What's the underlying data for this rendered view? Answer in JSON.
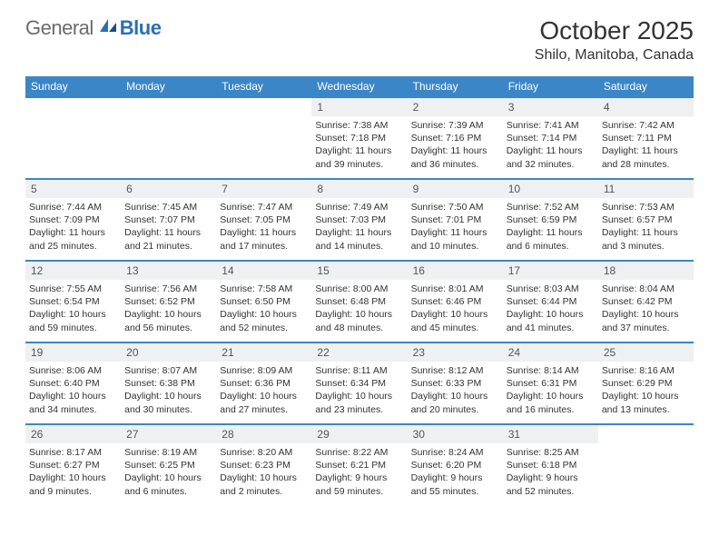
{
  "logo": {
    "general": "General",
    "blue": "Blue"
  },
  "title": "October 2025",
  "subtitle": "Shilo, Manitoba, Canada",
  "colors": {
    "header_bg": "#3b86c7",
    "header_text": "#ffffff",
    "week_border": "#3b86c7",
    "daynum_bg": "#eef0f2",
    "daynum_text": "#555555",
    "body_text": "#333333",
    "logo_general": "#6b6b6b",
    "logo_blue": "#2a6fb5",
    "page_bg": "#ffffff"
  },
  "typography": {
    "title_fontsize": 28,
    "subtitle_fontsize": 16,
    "dow_fontsize": 12,
    "daynum_fontsize": 12,
    "body_fontsize": 10.5,
    "logo_fontsize": 22
  },
  "layout": {
    "columns": 7,
    "rows": 5,
    "cell_min_height": 88
  },
  "days_of_week": [
    "Sunday",
    "Monday",
    "Tuesday",
    "Wednesday",
    "Thursday",
    "Friday",
    "Saturday"
  ],
  "weeks": [
    [
      {
        "day": "",
        "sunrise": "",
        "sunset": "",
        "daylight": ""
      },
      {
        "day": "",
        "sunrise": "",
        "sunset": "",
        "daylight": ""
      },
      {
        "day": "",
        "sunrise": "",
        "sunset": "",
        "daylight": ""
      },
      {
        "day": "1",
        "sunrise": "Sunrise: 7:38 AM",
        "sunset": "Sunset: 7:18 PM",
        "daylight": "Daylight: 11 hours and 39 minutes."
      },
      {
        "day": "2",
        "sunrise": "Sunrise: 7:39 AM",
        "sunset": "Sunset: 7:16 PM",
        "daylight": "Daylight: 11 hours and 36 minutes."
      },
      {
        "day": "3",
        "sunrise": "Sunrise: 7:41 AM",
        "sunset": "Sunset: 7:14 PM",
        "daylight": "Daylight: 11 hours and 32 minutes."
      },
      {
        "day": "4",
        "sunrise": "Sunrise: 7:42 AM",
        "sunset": "Sunset: 7:11 PM",
        "daylight": "Daylight: 11 hours and 28 minutes."
      }
    ],
    [
      {
        "day": "5",
        "sunrise": "Sunrise: 7:44 AM",
        "sunset": "Sunset: 7:09 PM",
        "daylight": "Daylight: 11 hours and 25 minutes."
      },
      {
        "day": "6",
        "sunrise": "Sunrise: 7:45 AM",
        "sunset": "Sunset: 7:07 PM",
        "daylight": "Daylight: 11 hours and 21 minutes."
      },
      {
        "day": "7",
        "sunrise": "Sunrise: 7:47 AM",
        "sunset": "Sunset: 7:05 PM",
        "daylight": "Daylight: 11 hours and 17 minutes."
      },
      {
        "day": "8",
        "sunrise": "Sunrise: 7:49 AM",
        "sunset": "Sunset: 7:03 PM",
        "daylight": "Daylight: 11 hours and 14 minutes."
      },
      {
        "day": "9",
        "sunrise": "Sunrise: 7:50 AM",
        "sunset": "Sunset: 7:01 PM",
        "daylight": "Daylight: 11 hours and 10 minutes."
      },
      {
        "day": "10",
        "sunrise": "Sunrise: 7:52 AM",
        "sunset": "Sunset: 6:59 PM",
        "daylight": "Daylight: 11 hours and 6 minutes."
      },
      {
        "day": "11",
        "sunrise": "Sunrise: 7:53 AM",
        "sunset": "Sunset: 6:57 PM",
        "daylight": "Daylight: 11 hours and 3 minutes."
      }
    ],
    [
      {
        "day": "12",
        "sunrise": "Sunrise: 7:55 AM",
        "sunset": "Sunset: 6:54 PM",
        "daylight": "Daylight: 10 hours and 59 minutes."
      },
      {
        "day": "13",
        "sunrise": "Sunrise: 7:56 AM",
        "sunset": "Sunset: 6:52 PM",
        "daylight": "Daylight: 10 hours and 56 minutes."
      },
      {
        "day": "14",
        "sunrise": "Sunrise: 7:58 AM",
        "sunset": "Sunset: 6:50 PM",
        "daylight": "Daylight: 10 hours and 52 minutes."
      },
      {
        "day": "15",
        "sunrise": "Sunrise: 8:00 AM",
        "sunset": "Sunset: 6:48 PM",
        "daylight": "Daylight: 10 hours and 48 minutes."
      },
      {
        "day": "16",
        "sunrise": "Sunrise: 8:01 AM",
        "sunset": "Sunset: 6:46 PM",
        "daylight": "Daylight: 10 hours and 45 minutes."
      },
      {
        "day": "17",
        "sunrise": "Sunrise: 8:03 AM",
        "sunset": "Sunset: 6:44 PM",
        "daylight": "Daylight: 10 hours and 41 minutes."
      },
      {
        "day": "18",
        "sunrise": "Sunrise: 8:04 AM",
        "sunset": "Sunset: 6:42 PM",
        "daylight": "Daylight: 10 hours and 37 minutes."
      }
    ],
    [
      {
        "day": "19",
        "sunrise": "Sunrise: 8:06 AM",
        "sunset": "Sunset: 6:40 PM",
        "daylight": "Daylight: 10 hours and 34 minutes."
      },
      {
        "day": "20",
        "sunrise": "Sunrise: 8:07 AM",
        "sunset": "Sunset: 6:38 PM",
        "daylight": "Daylight: 10 hours and 30 minutes."
      },
      {
        "day": "21",
        "sunrise": "Sunrise: 8:09 AM",
        "sunset": "Sunset: 6:36 PM",
        "daylight": "Daylight: 10 hours and 27 minutes."
      },
      {
        "day": "22",
        "sunrise": "Sunrise: 8:11 AM",
        "sunset": "Sunset: 6:34 PM",
        "daylight": "Daylight: 10 hours and 23 minutes."
      },
      {
        "day": "23",
        "sunrise": "Sunrise: 8:12 AM",
        "sunset": "Sunset: 6:33 PM",
        "daylight": "Daylight: 10 hours and 20 minutes."
      },
      {
        "day": "24",
        "sunrise": "Sunrise: 8:14 AM",
        "sunset": "Sunset: 6:31 PM",
        "daylight": "Daylight: 10 hours and 16 minutes."
      },
      {
        "day": "25",
        "sunrise": "Sunrise: 8:16 AM",
        "sunset": "Sunset: 6:29 PM",
        "daylight": "Daylight: 10 hours and 13 minutes."
      }
    ],
    [
      {
        "day": "26",
        "sunrise": "Sunrise: 8:17 AM",
        "sunset": "Sunset: 6:27 PM",
        "daylight": "Daylight: 10 hours and 9 minutes."
      },
      {
        "day": "27",
        "sunrise": "Sunrise: 8:19 AM",
        "sunset": "Sunset: 6:25 PM",
        "daylight": "Daylight: 10 hours and 6 minutes."
      },
      {
        "day": "28",
        "sunrise": "Sunrise: 8:20 AM",
        "sunset": "Sunset: 6:23 PM",
        "daylight": "Daylight: 10 hours and 2 minutes."
      },
      {
        "day": "29",
        "sunrise": "Sunrise: 8:22 AM",
        "sunset": "Sunset: 6:21 PM",
        "daylight": "Daylight: 9 hours and 59 minutes."
      },
      {
        "day": "30",
        "sunrise": "Sunrise: 8:24 AM",
        "sunset": "Sunset: 6:20 PM",
        "daylight": "Daylight: 9 hours and 55 minutes."
      },
      {
        "day": "31",
        "sunrise": "Sunrise: 8:25 AM",
        "sunset": "Sunset: 6:18 PM",
        "daylight": "Daylight: 9 hours and 52 minutes."
      },
      {
        "day": "",
        "sunrise": "",
        "sunset": "",
        "daylight": ""
      }
    ]
  ]
}
